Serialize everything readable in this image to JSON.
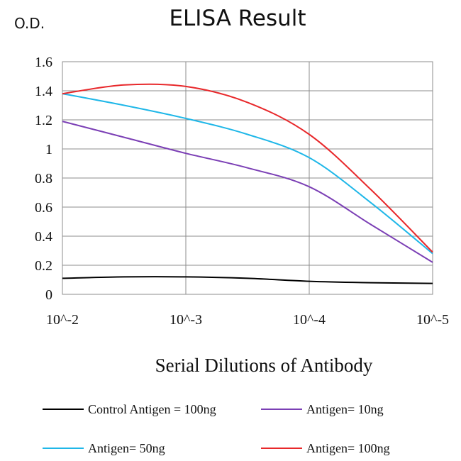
{
  "chart_data": {
    "type": "line",
    "title": "ELISA Result",
    "ylabel": "O.D.",
    "xlabel": "Serial Dilutions of Antibody",
    "categories": [
      "10^-2",
      "10^-3",
      "10^-4",
      "10^-5"
    ],
    "x": [
      0,
      0.5,
      1,
      1.5,
      2,
      2.5,
      3
    ],
    "ylim": [
      0,
      1.6
    ],
    "yticks": [
      "0",
      "0.2",
      "0.4",
      "0.6",
      "0.8",
      "1",
      "1.2",
      "1.4",
      "1.6"
    ],
    "grid": true,
    "legend_position": "bottom",
    "series": [
      {
        "name": "Control Antigen = 100ng",
        "color": "#000000",
        "values": [
          0.11,
          0.12,
          0.12,
          0.11,
          0.09,
          0.08,
          0.075
        ]
      },
      {
        "name": "Antigen= 10ng",
        "color": "#7b3fb5",
        "values": [
          1.19,
          1.08,
          0.97,
          0.87,
          0.74,
          0.48,
          0.22
        ]
      },
      {
        "name": "Antigen= 50ng",
        "color": "#1fb7e8",
        "values": [
          1.38,
          1.3,
          1.21,
          1.1,
          0.94,
          0.63,
          0.28
        ]
      },
      {
        "name": "Antigen= 100ng",
        "color": "#e8282b",
        "values": [
          1.38,
          1.44,
          1.43,
          1.32,
          1.1,
          0.72,
          0.29
        ]
      }
    ]
  }
}
